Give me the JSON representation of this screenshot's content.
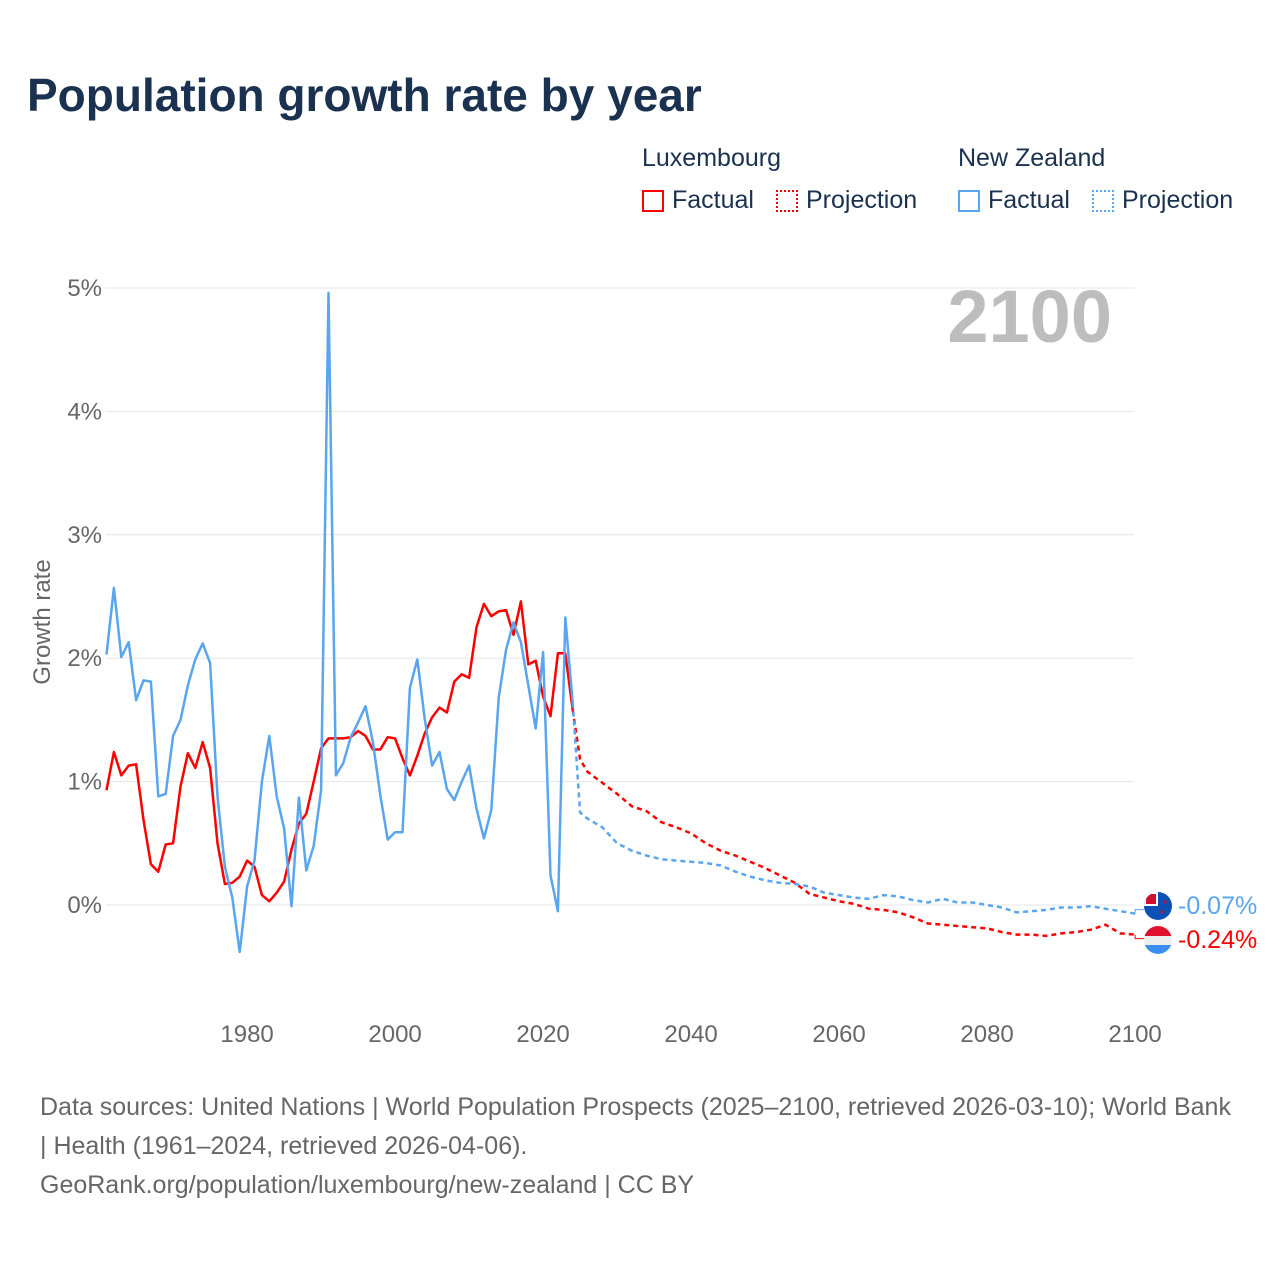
{
  "title": "Population growth rate by year",
  "legend": {
    "groups": [
      {
        "name": "Luxembourg",
        "color": "#ff0000",
        "factual": "Factual",
        "projection": "Projection"
      },
      {
        "name": "New Zealand",
        "color": "#5aa5ef",
        "factual": "Factual",
        "projection": "Projection"
      }
    ]
  },
  "current_year_label": "2100",
  "end_labels": {
    "nz": "-0.07%",
    "lux": "-0.24%"
  },
  "sources": {
    "line1": "Data sources: United Nations | World Population Prospects (2025–2100, retrieved 2026-03-10); World Bank | Health (1961–2024, retrieved 2026-04-06).",
    "line2": "GeoRank.org/population/luxembourg/new-zealand | CC BY"
  },
  "chart_data": {
    "type": "line",
    "title": "Population growth rate by year",
    "xlabel": "",
    "ylabel": "Growth rate",
    "xlim": [
      1961,
      2100
    ],
    "ylim": [
      -0.8,
      5.2
    ],
    "xticks": [
      1980,
      2000,
      2020,
      2040,
      2060,
      2080,
      2100
    ],
    "xtick_labels": [
      "1980",
      "2000",
      "2020",
      "2040",
      "2060",
      "2080",
      "2100"
    ],
    "yticks": [
      0,
      1,
      2,
      3,
      4,
      5
    ],
    "ytick_labels": [
      "0%",
      "1%",
      "2%",
      "3%",
      "4%",
      "5%"
    ],
    "grid": true,
    "legend_position": "top-right",
    "series": [
      {
        "name": "Luxembourg",
        "kind": "Factual",
        "color": "#ff0000",
        "x_start": 1961,
        "values": [
          0.93,
          1.24,
          1.05,
          1.13,
          1.14,
          0.69,
          0.33,
          0.27,
          0.49,
          0.5,
          0.96,
          1.23,
          1.11,
          1.32,
          1.11,
          0.5,
          0.17,
          0.18,
          0.23,
          0.36,
          0.31,
          0.08,
          0.03,
          0.1,
          0.19,
          0.45,
          0.66,
          0.74,
          1.0,
          1.27,
          1.35,
          1.35,
          1.35,
          1.36,
          1.41,
          1.37,
          1.26,
          1.26,
          1.36,
          1.35,
          1.19,
          1.05,
          1.21,
          1.39,
          1.52,
          1.6,
          1.56,
          1.81,
          1.87,
          1.84,
          2.25,
          2.44,
          2.34,
          2.38,
          2.39,
          2.19,
          2.46,
          1.95,
          1.98,
          1.69,
          1.53,
          2.04,
          2.04,
          1.58
        ]
      },
      {
        "name": "New Zealand",
        "kind": "Factual",
        "color": "#5aa5ef",
        "x_start": 1961,
        "values": [
          2.03,
          2.57,
          2.01,
          2.13,
          1.66,
          1.82,
          1.81,
          0.88,
          0.9,
          1.37,
          1.5,
          1.78,
          1.99,
          2.12,
          1.96,
          0.88,
          0.31,
          0.06,
          -0.38,
          0.15,
          0.36,
          1.0,
          1.37,
          0.88,
          0.62,
          -0.01,
          0.87,
          0.28,
          0.48,
          0.93,
          4.96,
          1.05,
          1.15,
          1.36,
          1.48,
          1.61,
          1.32,
          0.89,
          0.53,
          0.59,
          0.59,
          1.76,
          1.99,
          1.51,
          1.13,
          1.24,
          0.94,
          0.85,
          1.0,
          1.13,
          0.78,
          0.54,
          0.77,
          1.68,
          2.07,
          2.29,
          2.13,
          1.78,
          1.43,
          2.05,
          0.24,
          -0.05,
          2.33,
          1.64
        ]
      },
      {
        "name": "Luxembourg",
        "kind": "Projection",
        "color": "#ff0000",
        "x": [
          2024,
          2025,
          2026,
          2028,
          2030,
          2032,
          2034,
          2036,
          2038,
          2040,
          2042,
          2044,
          2046,
          2048,
          2050,
          2052,
          2054,
          2056,
          2058,
          2060,
          2062,
          2064,
          2066,
          2068,
          2070,
          2072,
          2074,
          2076,
          2078,
          2080,
          2082,
          2084,
          2086,
          2088,
          2090,
          2092,
          2094,
          2096,
          2098,
          2100
        ],
        "values": [
          1.58,
          1.18,
          1.08,
          0.99,
          0.9,
          0.8,
          0.76,
          0.67,
          0.63,
          0.58,
          0.5,
          0.44,
          0.4,
          0.35,
          0.3,
          0.24,
          0.18,
          0.09,
          0.06,
          0.03,
          0.01,
          -0.03,
          -0.04,
          -0.06,
          -0.1,
          -0.15,
          -0.16,
          -0.17,
          -0.18,
          -0.19,
          -0.22,
          -0.24,
          -0.24,
          -0.25,
          -0.23,
          -0.22,
          -0.2,
          -0.16,
          -0.23,
          -0.24
        ]
      },
      {
        "name": "New Zealand",
        "kind": "Projection",
        "color": "#5aa5ef",
        "x": [
          2024,
          2025,
          2026,
          2028,
          2030,
          2032,
          2034,
          2036,
          2038,
          2040,
          2042,
          2044,
          2046,
          2048,
          2050,
          2052,
          2054,
          2056,
          2058,
          2060,
          2062,
          2064,
          2066,
          2068,
          2070,
          2072,
          2074,
          2076,
          2078,
          2080,
          2082,
          2084,
          2086,
          2088,
          2090,
          2092,
          2094,
          2096,
          2098,
          2100
        ],
        "values": [
          1.64,
          0.75,
          0.7,
          0.63,
          0.5,
          0.44,
          0.4,
          0.37,
          0.36,
          0.35,
          0.34,
          0.32,
          0.27,
          0.23,
          0.2,
          0.18,
          0.17,
          0.15,
          0.1,
          0.08,
          0.06,
          0.05,
          0.08,
          0.07,
          0.04,
          0.02,
          0.05,
          0.02,
          0.02,
          0.0,
          -0.02,
          -0.06,
          -0.05,
          -0.04,
          -0.02,
          -0.02,
          -0.01,
          -0.03,
          -0.05,
          -0.07
        ]
      }
    ]
  }
}
